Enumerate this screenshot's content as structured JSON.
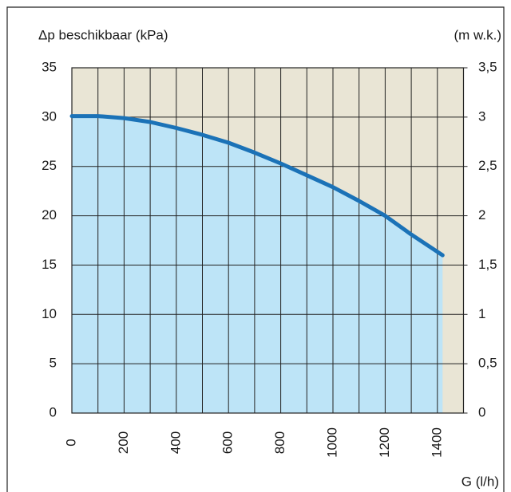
{
  "chart_data": {
    "type": "area",
    "title": "Δp beschikbaar (kPa)",
    "y2_label": "(m w.k.)",
    "x_label": "G (l/h)",
    "x": [
      0,
      100,
      200,
      300,
      400,
      500,
      600,
      700,
      800,
      900,
      1000,
      1100,
      1200,
      1300,
      1420
    ],
    "series": [
      {
        "name": "Δp",
        "color": "#1b72b7",
        "fill": "#bde4f7",
        "values": [
          30.1,
          30.1,
          29.9,
          29.5,
          28.9,
          28.2,
          27.4,
          26.4,
          25.3,
          24.1,
          22.9,
          21.5,
          20,
          18.1,
          16
        ]
      }
    ],
    "background": "#e9e5d5",
    "xlim": [
      0,
      1500
    ],
    "xticks": [
      0,
      200,
      400,
      600,
      800,
      1000,
      1200,
      1400
    ],
    "xminorticks": [
      100,
      300,
      500,
      700,
      900,
      1100,
      1300
    ],
    "ylim": [
      0,
      35
    ],
    "yticks": [
      0,
      5,
      10,
      15,
      20,
      25,
      30,
      35
    ],
    "y2lim": [
      0,
      3.5
    ],
    "y2ticks": [
      0,
      {
        "value": 0.5,
        "label": "0,5"
      },
      1,
      {
        "value": 1.5,
        "label": "1,5"
      },
      2,
      {
        "value": 2.5,
        "label": "2,5"
      },
      3,
      {
        "value": 3.5,
        "label": "3,5"
      }
    ],
    "grid": true
  }
}
